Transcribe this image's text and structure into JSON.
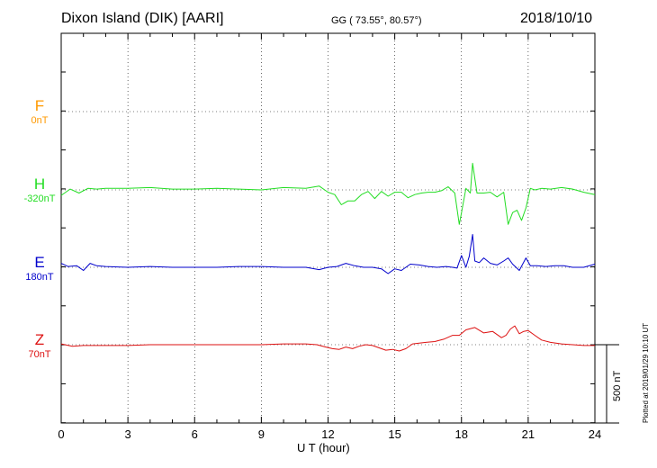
{
  "header": {
    "station": "Dixon Island (DIK)  [AARI]",
    "coords": "GG ( 73.55°,  80.57°)",
    "date": "2018/10/10"
  },
  "panels": [
    {
      "name": "F",
      "offset": "0nT",
      "color": "#ff9900"
    },
    {
      "name": "H",
      "offset": "-320nT",
      "color": "#22dd22"
    },
    {
      "name": "E",
      "offset": "180nT",
      "color": "#0000cc"
    },
    {
      "name": "Z",
      "offset": "70nT",
      "color": "#dd1111"
    }
  ],
  "x_axis_title": "U T (hour)",
  "scale_label": "500 nT",
  "plotted_note": "Plotted at 2019/01/29 10:10 UT",
  "chart_data": {
    "type": "line",
    "xlabel": "U T (hour)",
    "xlim": [
      0,
      24
    ],
    "xticks": [
      "0",
      "3",
      "6",
      "9",
      "12",
      "15",
      "18",
      "21",
      "24"
    ],
    "grid": true,
    "series": [
      {
        "name": "H",
        "color": "#22dd22",
        "x": [
          0,
          0.4,
          0.8,
          1.2,
          1.6,
          2,
          3,
          4,
          5,
          6,
          7,
          8,
          9,
          10,
          11,
          11.6,
          12.0,
          12.3,
          12.6,
          12.9,
          13.2,
          13.5,
          13.8,
          14.1,
          14.4,
          14.7,
          15.0,
          15.3,
          15.6,
          15.9,
          16.2,
          16.5,
          16.8,
          17.1,
          17.4,
          17.7,
          17.9,
          18.0,
          18.2,
          18.4,
          18.5,
          18.7,
          19.0,
          19.3,
          19.6,
          19.9,
          20.1,
          20.3,
          20.5,
          20.7,
          20.9,
          21.1,
          21.3,
          21.6,
          22.0,
          22.5,
          23.0,
          23.5,
          24
        ],
        "values": [
          -35,
          5,
          -20,
          10,
          5,
          10,
          10,
          15,
          5,
          5,
          10,
          5,
          0,
          15,
          10,
          25,
          -15,
          -30,
          -95,
          -70,
          -70,
          -30,
          -10,
          -55,
          -10,
          -40,
          -15,
          -15,
          -50,
          -30,
          -20,
          -15,
          -15,
          -5,
          20,
          -20,
          -220,
          -145,
          10,
          -20,
          170,
          -20,
          -20,
          -15,
          -45,
          -15,
          -220,
          -145,
          -130,
          -195,
          -115,
          10,
          0,
          10,
          5,
          15,
          5,
          -15,
          -30
        ]
      },
      {
        "name": "E",
        "color": "#0000cc",
        "x": [
          0,
          0.3,
          0.7,
          1.0,
          1.3,
          1.6,
          2,
          3,
          4,
          5,
          6,
          7,
          8,
          9,
          10,
          11,
          11.6,
          12.0,
          12.4,
          12.8,
          13.2,
          13.6,
          14.0,
          14.4,
          14.7,
          15.0,
          15.3,
          15.7,
          16.1,
          16.5,
          16.9,
          17.3,
          17.6,
          17.8,
          18.0,
          18.2,
          18.35,
          18.5,
          18.6,
          18.8,
          19.0,
          19.3,
          19.6,
          19.9,
          20.1,
          20.3,
          20.6,
          20.9,
          21.1,
          21.4,
          21.8,
          22.2,
          22.6,
          23.0,
          23.5,
          24
        ],
        "values": [
          25,
          5,
          10,
          -20,
          25,
          10,
          5,
          0,
          5,
          0,
          0,
          0,
          5,
          5,
          0,
          0,
          -15,
          0,
          5,
          25,
          10,
          0,
          0,
          -10,
          -40,
          -10,
          -20,
          20,
          15,
          5,
          0,
          5,
          0,
          -5,
          75,
          0,
          70,
          210,
          40,
          30,
          60,
          25,
          15,
          40,
          60,
          20,
          -20,
          60,
          10,
          10,
          5,
          10,
          10,
          0,
          0,
          20
        ]
      },
      {
        "name": "Z",
        "color": "#dd1111",
        "x": [
          0,
          0.5,
          1,
          2,
          3,
          4,
          5,
          6,
          7,
          8,
          9,
          10,
          11,
          11.5,
          11.9,
          12.2,
          12.5,
          12.8,
          13.1,
          13.4,
          13.7,
          14.0,
          14.3,
          14.6,
          14.9,
          15.2,
          15.5,
          15.8,
          16.1,
          16.4,
          16.8,
          17.2,
          17.6,
          17.9,
          18.2,
          18.6,
          19.0,
          19.4,
          19.8,
          20.0,
          20.2,
          20.4,
          20.6,
          20.8,
          21.0,
          21.3,
          21.6,
          22.0,
          22.5,
          23.0,
          23.5,
          24
        ],
        "values": [
          5,
          -10,
          -5,
          -5,
          -5,
          0,
          0,
          0,
          0,
          0,
          0,
          5,
          5,
          0,
          -15,
          -25,
          -30,
          -15,
          -25,
          -10,
          0,
          -5,
          -20,
          -35,
          -30,
          -40,
          -25,
          5,
          10,
          15,
          20,
          35,
          60,
          60,
          95,
          110,
          75,
          85,
          45,
          60,
          100,
          120,
          70,
          85,
          90,
          60,
          30,
          15,
          5,
          0,
          -5,
          -5
        ]
      }
    ]
  }
}
